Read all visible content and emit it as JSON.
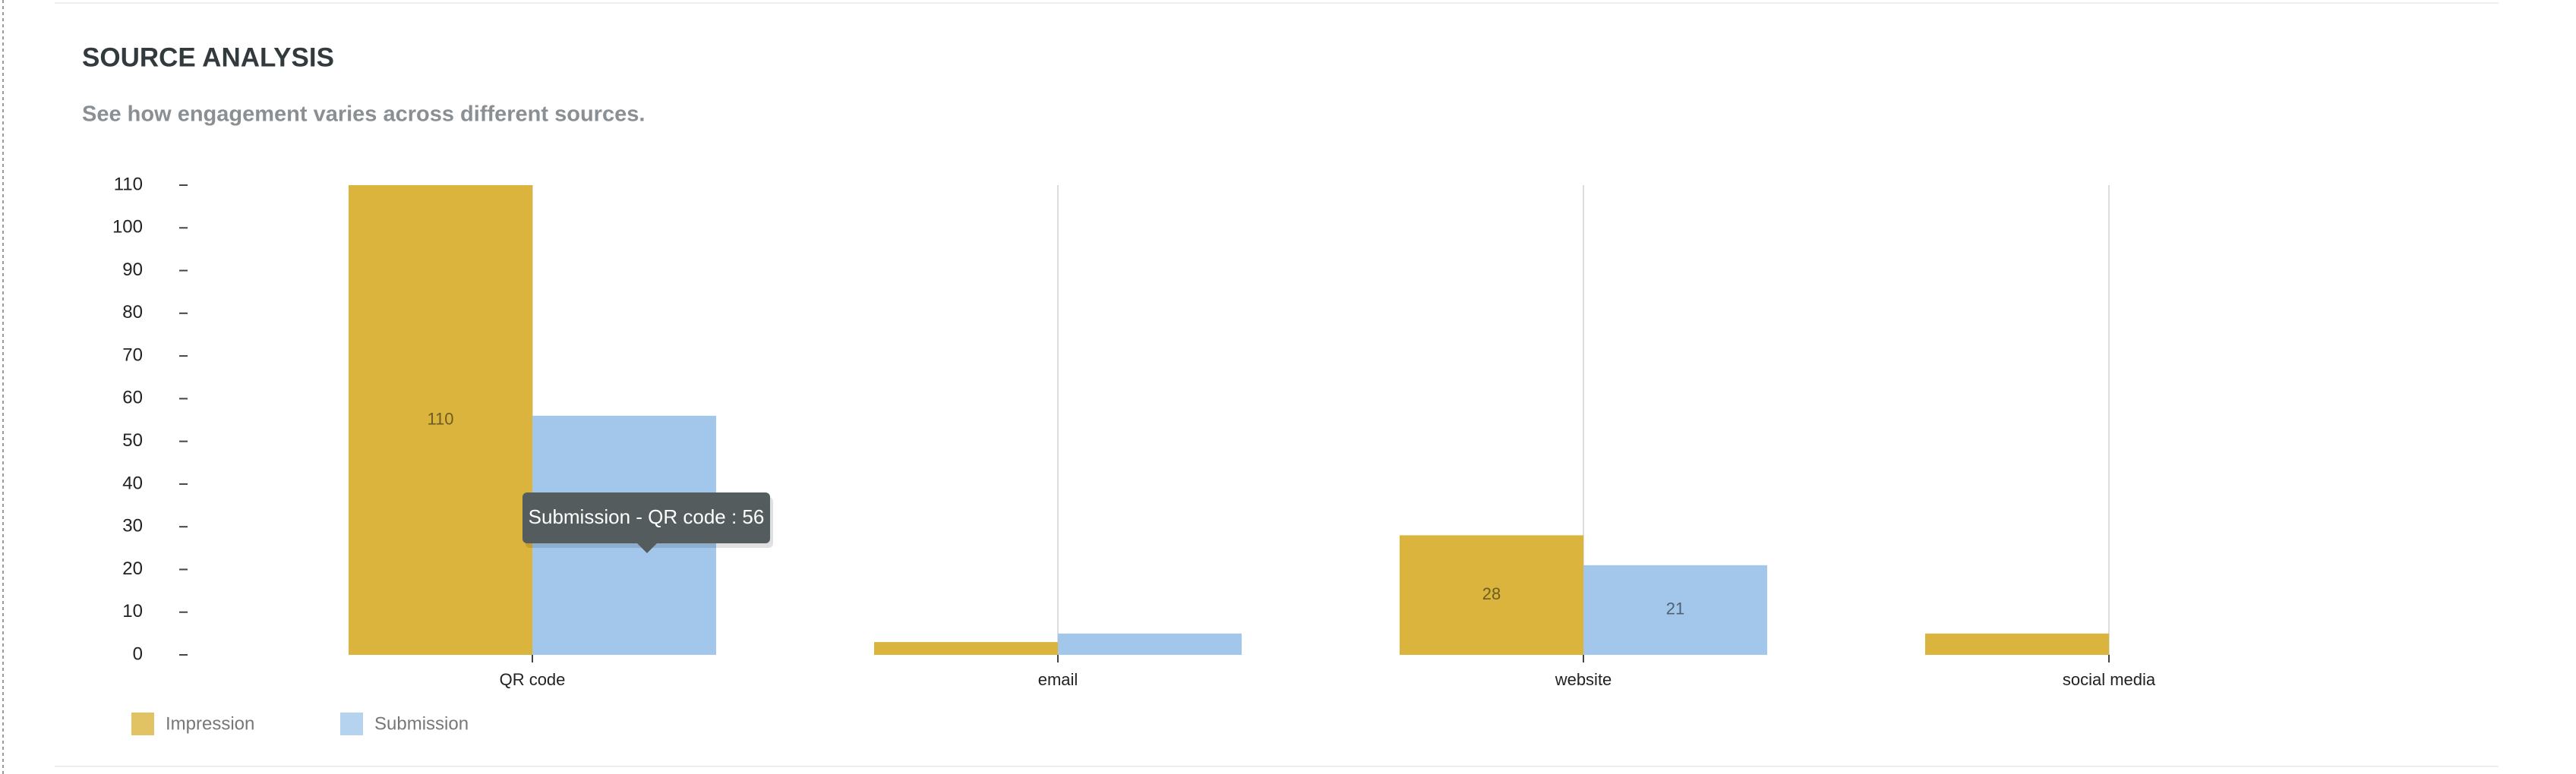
{
  "chart_data": {
    "type": "bar",
    "title": "SOURCE ANALYSIS",
    "subtitle": "See how engagement varies across different sources.",
    "categories": [
      "QR code",
      "email",
      "website",
      "social media"
    ],
    "series": [
      {
        "name": "Impression",
        "color": "#dbb43d",
        "values": [
          110,
          3,
          28,
          5
        ]
      },
      {
        "name": "Submission",
        "color": "#a3c7eb",
        "values": [
          56,
          5,
          21,
          0
        ]
      }
    ],
    "ylim": [
      0,
      110
    ],
    "yticks": [
      0,
      10,
      20,
      30,
      40,
      50,
      60,
      70,
      80,
      90,
      100,
      110
    ],
    "grid": true,
    "legend": "bottom-left",
    "tooltip": "Submission - QR code : 56"
  }
}
